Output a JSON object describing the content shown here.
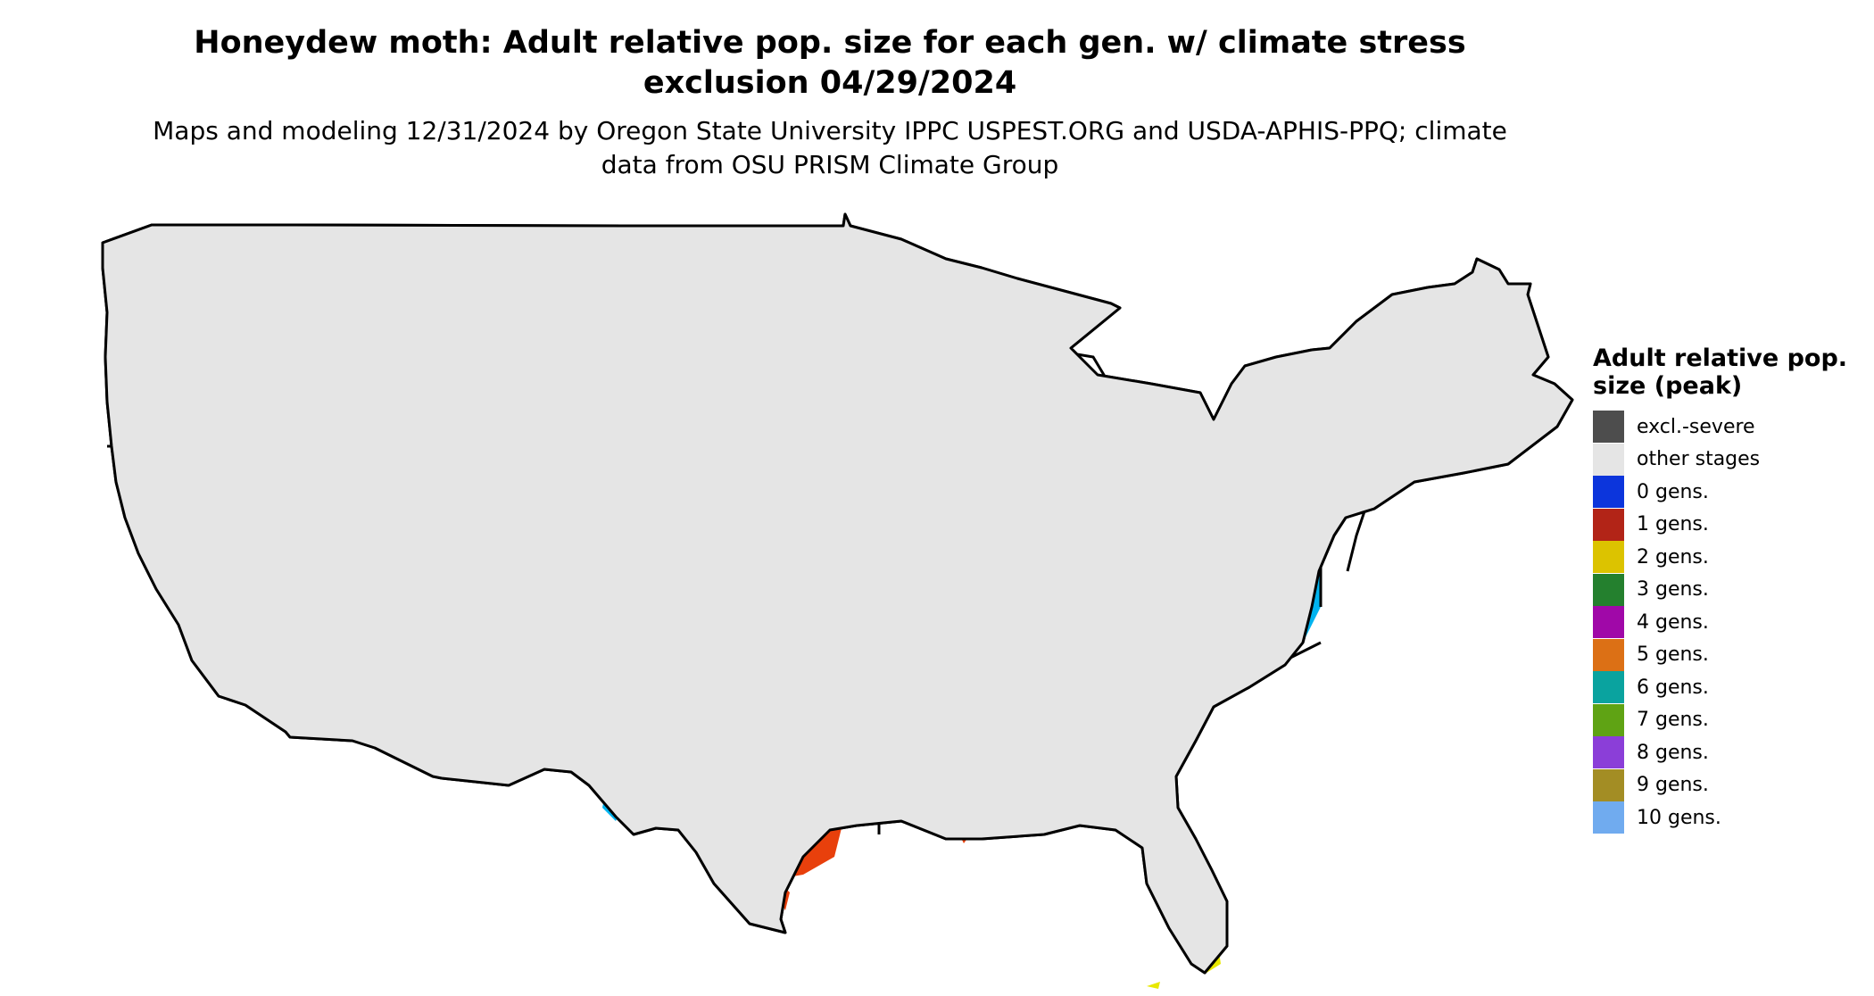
{
  "title": "Honeydew moth: Adult relative pop. size for each gen. w/ climate stress exclusion 04/29/2024",
  "subtitle": "Maps and modeling 12/31/2024 by Oregon State University IPPC USPEST.ORG and USDA-APHIS-PPQ; climate data from OSU PRISM Climate Group",
  "map": {
    "region": "Contiguous United States",
    "background": "#e5e5e5",
    "border_color": "#000000"
  },
  "legend": {
    "title": "Adult relative pop. size (peak)",
    "items": [
      {
        "label": "excl.-severe",
        "color": "#4d4d4d"
      },
      {
        "label": "other stages",
        "color": "#e5e5e5"
      },
      {
        "label": "0 gens.",
        "color": "#0c35dc"
      },
      {
        "label": "1 gens.",
        "color": "#b22417"
      },
      {
        "label": "2 gens.",
        "color": "#dcc300"
      },
      {
        "label": "3 gens.",
        "color": "#24802e"
      },
      {
        "label": "4 gens.",
        "color": "#a008a8"
      },
      {
        "label": "5 gens.",
        "color": "#dc7015"
      },
      {
        "label": "6 gens.",
        "color": "#0aa39f"
      },
      {
        "label": "7 gens.",
        "color": "#5fa314"
      },
      {
        "label": "8 gens.",
        "color": "#8b3ed8"
      },
      {
        "label": "9 gens.",
        "color": "#a38d24"
      },
      {
        "label": "10 gens.",
        "color": "#70abef"
      }
    ]
  },
  "layer_colors": {
    "excluded": "#4d4d4d",
    "zero_gen_dark": "#0c35dc",
    "zero_gen_light": "#00b4f0",
    "red_orange": "#e8400c",
    "yellow": "#e8e800"
  }
}
